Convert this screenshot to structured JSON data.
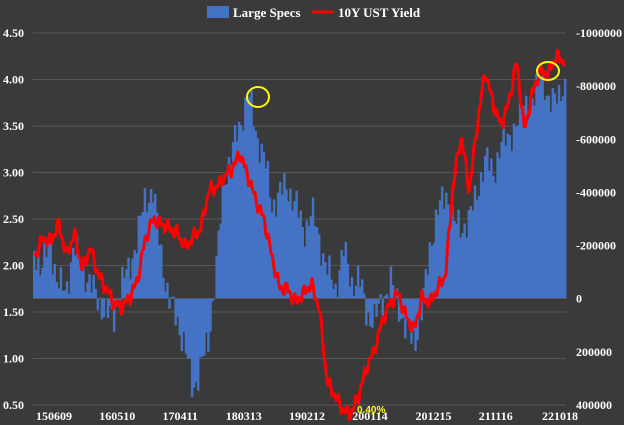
{
  "chart_data": {
    "type": "bar+line",
    "legend": {
      "position": "top-center",
      "items": [
        {
          "label": "Large Specs",
          "color": "#4472c4",
          "kind": "bar"
        },
        {
          "label": "10Y UST Yield",
          "color": "#ff0000",
          "kind": "line"
        }
      ]
    },
    "x_tick_labels": [
      "150609",
      "160510",
      "170411",
      "180313",
      "190212",
      "200114",
      "201215",
      "211116",
      "221018"
    ],
    "left_axis": {
      "series": "10Y UST Yield",
      "ylim": [
        0.5,
        4.5
      ],
      "tick_labels": [
        "4.50",
        "4.00",
        "3.50",
        "3.00",
        "2.50",
        "2.00",
        "1.50",
        "1.00",
        "0.50"
      ]
    },
    "right_axis": {
      "series": "Large Specs",
      "ylim": [
        -1000000,
        400000
      ],
      "inverted": true,
      "tick_labels": [
        "-1000000",
        "-800000",
        "-600000",
        "-400000",
        "-200000",
        "0",
        "200000",
        "400000"
      ]
    },
    "annotations": [
      {
        "text": "0.40%"
      }
    ],
    "highlight_circles": 2,
    "grid": "horizontal",
    "large_specs_values": [
      -180000,
      -120000,
      -210000,
      -60000,
      -20000,
      -200000,
      -120000,
      -60000,
      0,
      50000,
      80000,
      -50000,
      -120000,
      -220000,
      -380000,
      -400000,
      -180000,
      10000,
      70000,
      180000,
      340000,
      260000,
      160000,
      -120000,
      -450000,
      -560000,
      -650000,
      -780000,
      -620000,
      -540000,
      -350000,
      -400000,
      -420000,
      -360000,
      -250000,
      -330000,
      -220000,
      -110000,
      -30000,
      -190000,
      -60000,
      -80000,
      60000,
      80000,
      0,
      -60000,
      20000,
      130000,
      160000,
      40000,
      -210000,
      -330000,
      -400000,
      -280000,
      -270000,
      -300000,
      -420000,
      -520000,
      -480000,
      -580000,
      -620000,
      -650000,
      -760000,
      -720000,
      -880000,
      -700000,
      -800000,
      -760000
    ],
    "ust_10y_yield": [
      2.1,
      2.3,
      2.25,
      2.45,
      2.1,
      2.35,
      1.95,
      2.2,
      1.9,
      1.75,
      1.6,
      1.55,
      1.65,
      1.85,
      2.3,
      2.5,
      2.45,
      2.4,
      2.35,
      2.2,
      2.3,
      2.4,
      2.8,
      2.85,
      2.95,
      3.05,
      3.2,
      2.95,
      2.7,
      2.5,
      2.1,
      1.75,
      1.75,
      1.6,
      1.7,
      1.8,
      1.55,
      0.75,
      0.6,
      0.45,
      0.4,
      0.6,
      0.9,
      1.1,
      1.4,
      1.6,
      1.7,
      1.45,
      1.3,
      1.65,
      1.6,
      1.75,
      1.9,
      2.9,
      3.4,
      2.8,
      3.5,
      4.1,
      3.75,
      3.5,
      3.75,
      4.2,
      3.45,
      3.85,
      4.1,
      4.05,
      4.25,
      4.2
    ]
  }
}
